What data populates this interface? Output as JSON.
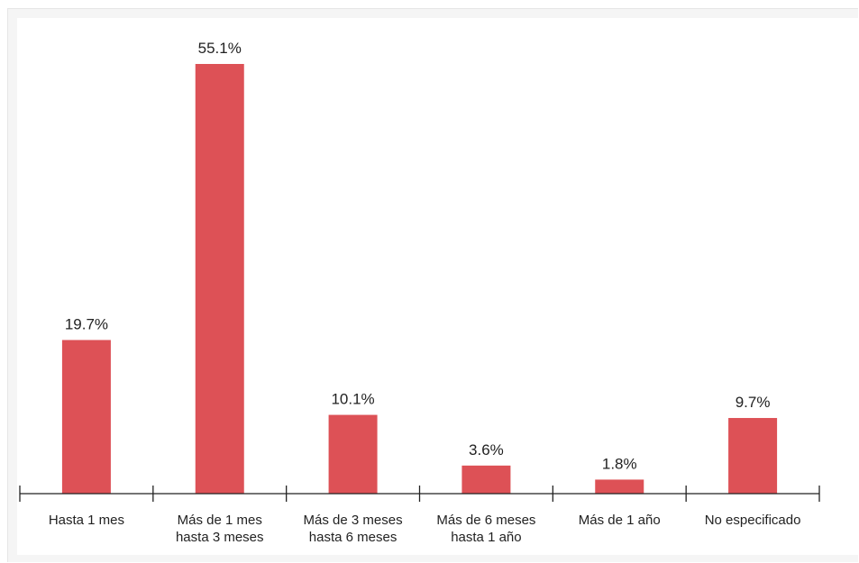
{
  "chart_data": {
    "type": "bar",
    "categories": [
      [
        "Hasta 1 mes"
      ],
      [
        "Más de 1 mes",
        "hasta 3 meses"
      ],
      [
        "Más de 3 meses",
        "hasta 6 meses"
      ],
      [
        "Más de 6 meses",
        "hasta 1 año"
      ],
      [
        "Más de 1 año"
      ],
      [
        "No especificado"
      ]
    ],
    "values": [
      19.7,
      55.1,
      10.1,
      3.6,
      1.8,
      9.7
    ],
    "data_labels": [
      "19.7%",
      "55.1%",
      "10.1%",
      "3.6%",
      "1.8%",
      "9.7%"
    ],
    "unit": "%",
    "ylim": [
      0,
      60
    ],
    "grid": false,
    "legend": "none",
    "colors": {
      "bar": "#dd5156",
      "axis": "#222222",
      "text": "#222222",
      "frame": "#f5f5f5"
    }
  }
}
